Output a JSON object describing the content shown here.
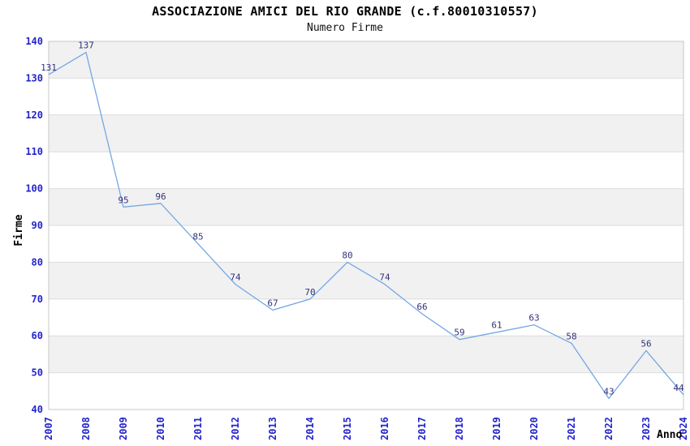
{
  "chart_data": {
    "type": "line",
    "title": "ASSOCIAZIONE AMICI DEL RIO GRANDE (c.f.80010310557)",
    "subtitle": "Numero Firme",
    "xlabel": "Anno",
    "ylabel": "Firme",
    "categories": [
      "2007",
      "2008",
      "2009",
      "2010",
      "2011",
      "2012",
      "2013",
      "2014",
      "2015",
      "2016",
      "2017",
      "2018",
      "2019",
      "2020",
      "2021",
      "2022",
      "2023",
      "2024"
    ],
    "values": [
      131,
      137,
      95,
      96,
      85,
      74,
      67,
      70,
      80,
      74,
      66,
      59,
      61,
      63,
      58,
      43,
      56,
      44
    ],
    "ylim": [
      40,
      140
    ],
    "ytick_step": 10,
    "grid": true,
    "alternating_bands": true,
    "legend_position": "none"
  },
  "colors": {
    "line": "#74a7e3",
    "tick_label": "#2424cc",
    "data_label": "#32327e",
    "axis_title": "#000000",
    "band": "#f1f1f1",
    "grid": "#dcdcdc",
    "plot_border": "#c8c8c8",
    "background": "#ffffff"
  }
}
